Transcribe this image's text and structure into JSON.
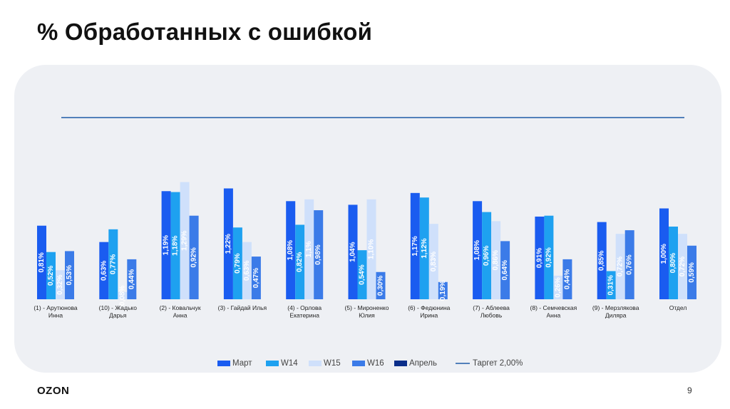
{
  "header": {
    "title": "% Обработанных с ошибкой"
  },
  "footer": {
    "logo": "OZON",
    "page_number": "9"
  },
  "colors": {
    "Март": "#1a5cf0",
    "W14": "#1ea1f0",
    "W15": "#cfe0fb",
    "W16": "#3b7be8",
    "Апрель": "#0b2e8a",
    "target": "#1f5aa6",
    "panel": "#eef0f4"
  },
  "chart_data": {
    "type": "bar",
    "title": "",
    "xlabel": "",
    "ylabel": "",
    "ylim": [
      0,
      2.0
    ],
    "grid": false,
    "legend_position": "bottom",
    "categories": [
      "(1) - Арутюнова Инна",
      "(10) - Жадько Дарья",
      "(2) - Ковальчук Анна",
      "(3) - Гайдай Илья",
      "(4) - Орлова Екатерина",
      "(5) - Мироненко Юлия",
      "(6) - Федюнина Ирина",
      "(7) - Аблеева Любовь",
      "(8) - Семчевская Анна",
      "(9) - Мерзлякова Диляра",
      "Отдел"
    ],
    "series": [
      {
        "name": "Март",
        "values": [
          0.81,
          0.63,
          1.19,
          1.22,
          1.08,
          1.04,
          1.17,
          1.08,
          0.91,
          0.85,
          1.0
        ],
        "labels": [
          "0,81%",
          "0,63%",
          "1,19%",
          "1,22%",
          "1,08%",
          "1,04%",
          "1,17%",
          "1,08%",
          "0,91%",
          "0,85%",
          "1,00%"
        ]
      },
      {
        "name": "W14",
        "values": [
          0.52,
          0.77,
          1.18,
          0.79,
          0.82,
          0.54,
          1.12,
          0.96,
          0.92,
          0.31,
          0.8
        ],
        "labels": [
          "0,52%",
          "0,77%",
          "1,18%",
          "0,79%",
          "0,82%",
          "0,54%",
          "1,12%",
          "0,96%",
          "0,92%",
          "0,31%",
          "0,80%"
        ]
      },
      {
        "name": "W15",
        "values": [
          0.32,
          0.08,
          1.29,
          0.63,
          1.1,
          1.1,
          0.83,
          0.86,
          0.26,
          0.72,
          0.72
        ],
        "labels": [
          "0,32%",
          "0,08%",
          "1,29%",
          "0,63%",
          "1,1%",
          "1,10%",
          "0,83%",
          "0,86%",
          "0,26%",
          "0,72%",
          "0,72%"
        ]
      },
      {
        "name": "W16",
        "values": [
          0.53,
          0.44,
          0.92,
          0.47,
          0.98,
          0.3,
          0.19,
          0.64,
          0.44,
          0.76,
          0.59
        ],
        "labels": [
          "0,53%",
          "0,44%",
          "0,92%",
          "0,47%",
          "0,98%",
          "0,30%",
          "0,19%",
          "0,64%",
          "0,44%",
          "0,76%",
          "0,59%"
        ]
      },
      {
        "name": "Апрель",
        "values": [
          null,
          null,
          null,
          null,
          null,
          null,
          null,
          null,
          null,
          null,
          null
        ],
        "labels": []
      }
    ],
    "target_line": {
      "name": "Таргет 2,00%",
      "value": 2.0
    },
    "legend": [
      "Март",
      "W14",
      "W15",
      "W16",
      "Апрель",
      "Таргет 2,00%"
    ]
  }
}
